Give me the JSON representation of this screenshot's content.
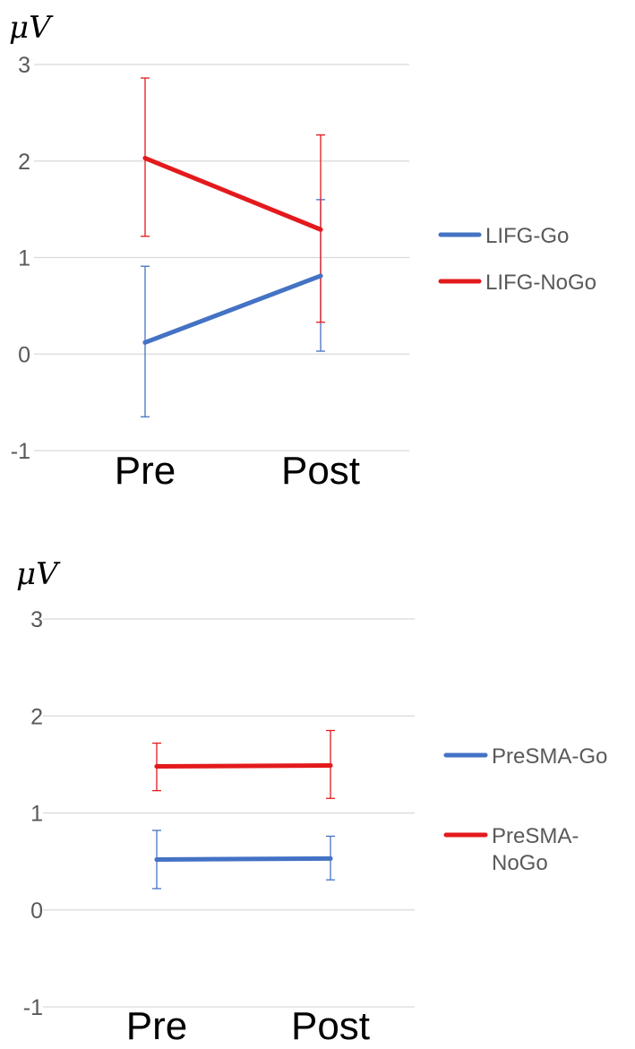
{
  "colors": {
    "go": "#4472c4",
    "nogo": "#e31a1c",
    "grid": "#d9d9d9",
    "tick_text": "#595959",
    "category_text": "#000000"
  },
  "chart_data": [
    {
      "type": "line",
      "title": "",
      "unit_label": "μV",
      "xlabel": "",
      "ylabel": "",
      "categories": [
        "Pre",
        "Post"
      ],
      "ylim": [
        -1,
        3
      ],
      "yticks": [
        3,
        2,
        1,
        0,
        -1
      ],
      "grid": true,
      "legend": "right",
      "series": [
        {
          "name": "LIFG-Go",
          "color": "#4472c4",
          "values": [
            0.12,
            0.81
          ],
          "error_low": [
            -0.65,
            0.03
          ],
          "error_high": [
            0.91,
            1.6
          ]
        },
        {
          "name": "LIFG-NoGo",
          "color": "#e31a1c",
          "values": [
            2.03,
            1.29
          ],
          "error_low": [
            1.22,
            0.33
          ],
          "error_high": [
            2.86,
            2.27
          ]
        }
      ]
    },
    {
      "type": "line",
      "title": "",
      "unit_label": "μV",
      "xlabel": "",
      "ylabel": "",
      "categories": [
        "Pre",
        "Post"
      ],
      "ylim": [
        -1,
        3
      ],
      "yticks": [
        3,
        2,
        1,
        0,
        -1
      ],
      "grid": true,
      "legend": "right",
      "series": [
        {
          "name": "PreSMA-Go",
          "color": "#4472c4",
          "values": [
            0.52,
            0.53
          ],
          "error_low": [
            0.22,
            0.31
          ],
          "error_high": [
            0.82,
            0.76
          ]
        },
        {
          "name": "PreSMA-NoGo",
          "name_lines": [
            "PreSMA-",
            "NoGo"
          ],
          "color": "#e31a1c",
          "values": [
            1.48,
            1.49
          ],
          "error_low": [
            1.23,
            1.15
          ],
          "error_high": [
            1.72,
            1.85
          ]
        }
      ]
    }
  ]
}
